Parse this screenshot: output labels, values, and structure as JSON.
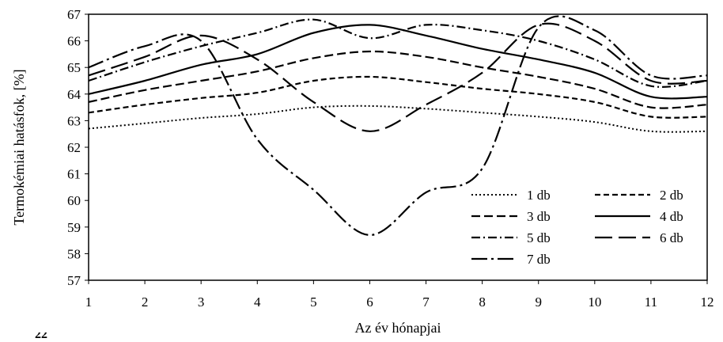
{
  "chart_data": {
    "type": "line",
    "xlabel": "Az év hónapjai",
    "ylabel": "Termokémiai hatásfok, [%]",
    "xlim": [
      1,
      12
    ],
    "ylim": [
      57,
      67
    ],
    "x_ticks": [
      1,
      2,
      3,
      4,
      5,
      6,
      7,
      8,
      9,
      10,
      11,
      12
    ],
    "y_ticks": [
      57,
      58,
      59,
      60,
      61,
      62,
      63,
      64,
      65,
      66,
      67
    ],
    "grid": false,
    "legend_position": "lower-right",
    "x": [
      1,
      2,
      3,
      4,
      5,
      6,
      7,
      8,
      9,
      10,
      11,
      12
    ],
    "series": [
      {
        "name": "1 db",
        "style": "dotted",
        "values": [
          62.7,
          62.9,
          63.1,
          63.25,
          63.5,
          63.55,
          63.45,
          63.3,
          63.15,
          62.95,
          62.6,
          62.6
        ]
      },
      {
        "name": "2 db",
        "style": "short-dash",
        "values": [
          63.3,
          63.6,
          63.85,
          64.05,
          64.5,
          64.65,
          64.45,
          64.2,
          64.0,
          63.7,
          63.15,
          63.15
        ]
      },
      {
        "name": "3 db",
        "style": "dash",
        "values": [
          63.7,
          64.15,
          64.5,
          64.85,
          65.35,
          65.6,
          65.4,
          65.0,
          64.65,
          64.2,
          63.5,
          63.6
        ]
      },
      {
        "name": "4 db",
        "style": "solid",
        "values": [
          64.0,
          64.5,
          65.1,
          65.5,
          66.3,
          66.6,
          66.2,
          65.7,
          65.3,
          64.8,
          63.9,
          63.9
        ]
      },
      {
        "name": "5 db",
        "style": "dash-dot",
        "values": [
          64.5,
          65.2,
          65.8,
          66.3,
          66.8,
          66.1,
          66.6,
          66.4,
          66.0,
          65.3,
          64.3,
          64.5
        ]
      },
      {
        "name": "6 db",
        "style": "long-dash",
        "values": [
          64.7,
          65.4,
          66.2,
          65.3,
          63.7,
          62.6,
          63.6,
          64.8,
          66.6,
          66.0,
          64.5,
          64.5
        ]
      },
      {
        "name": "7 db",
        "style": "long-dash-dot",
        "values": [
          65.0,
          65.8,
          66.0,
          62.3,
          60.4,
          58.7,
          60.3,
          61.2,
          66.5,
          66.4,
          64.7,
          64.7
        ]
      }
    ],
    "partial_caption": "22"
  }
}
